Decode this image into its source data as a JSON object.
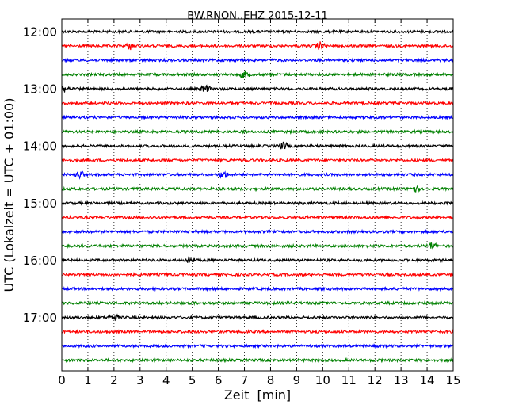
{
  "chart_data": {
    "type": "line",
    "title": "BW.RNON..EHZ 2015-12-11",
    "xlabel": "Zeit  [min]",
    "ylabel": "UTC (Lokalzeit = UTC + 01:00)",
    "xlim": [
      0,
      15
    ],
    "x_ticks": [
      0,
      1,
      2,
      3,
      4,
      5,
      6,
      7,
      8,
      9,
      10,
      11,
      12,
      13,
      14,
      15
    ],
    "y_tick_labels": [
      "12:00",
      "13:00",
      "14:00",
      "15:00",
      "16:00",
      "17:00"
    ],
    "grid": "vertical dotted",
    "trace_colors": [
      "#000000",
      "#ff0000",
      "#0000ff",
      "#008000"
    ],
    "traces": [
      {
        "start": "12:00",
        "event_minutes": []
      },
      {
        "start": "12:15",
        "event_minutes": [
          2.6,
          9.9
        ]
      },
      {
        "start": "12:30",
        "event_minutes": []
      },
      {
        "start": "12:45",
        "event_minutes": [
          7.0
        ]
      },
      {
        "start": "13:00",
        "event_minutes": [
          0.1,
          5.5
        ]
      },
      {
        "start": "13:15",
        "event_minutes": []
      },
      {
        "start": "13:30",
        "event_minutes": []
      },
      {
        "start": "13:45",
        "event_minutes": []
      },
      {
        "start": "14:00",
        "event_minutes": [
          8.5
        ]
      },
      {
        "start": "14:15",
        "event_minutes": []
      },
      {
        "start": "14:30",
        "event_minutes": [
          0.7,
          6.2
        ]
      },
      {
        "start": "14:45",
        "event_minutes": [
          13.5
        ]
      },
      {
        "start": "15:00",
        "event_minutes": []
      },
      {
        "start": "15:15",
        "event_minutes": []
      },
      {
        "start": "15:30",
        "event_minutes": []
      },
      {
        "start": "15:45",
        "event_minutes": [
          14.2
        ]
      },
      {
        "start": "16:00",
        "event_minutes": [
          4.9
        ]
      },
      {
        "start": "16:15",
        "event_minutes": []
      },
      {
        "start": "16:30",
        "event_minutes": []
      },
      {
        "start": "16:45",
        "event_minutes": []
      },
      {
        "start": "17:00",
        "event_minutes": [
          2.0
        ]
      },
      {
        "start": "17:15",
        "event_minutes": []
      },
      {
        "start": "17:30",
        "event_minutes": []
      },
      {
        "start": "17:45",
        "event_minutes": []
      }
    ]
  }
}
